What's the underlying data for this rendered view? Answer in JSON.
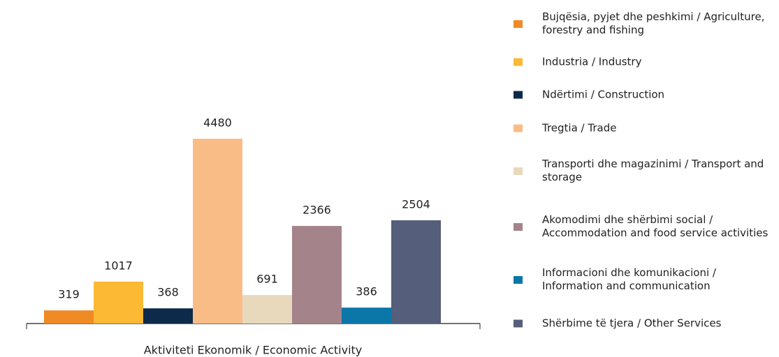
{
  "chart_data": {
    "type": "bar",
    "x_label": "Aktiviteti Ekonomik / Economic Activity",
    "categories": [
      "Bujqësia, pyjet dhe peshkimi / Agriculture, forestry and fishing",
      "Industria / Industry",
      "Ndërtimi / Construction",
      "Tregtia / Trade",
      "Transporti dhe magazinimi / Transport and storage",
      "Akomodimi dhe shërbimi social / Accommodation and food service activities",
      "Informacioni dhe komunikacioni / Information and communication",
      "Shërbime të tjera / Other Services"
    ],
    "values": [
      319,
      1017,
      368,
      4480,
      691,
      2366,
      386,
      2504
    ],
    "colors": [
      "#f08a24",
      "#fbb934",
      "#0e2a4a",
      "#f9bc87",
      "#e8d9bd",
      "#a5838a",
      "#0a77a8",
      "#555e7a"
    ],
    "legend": "right"
  }
}
